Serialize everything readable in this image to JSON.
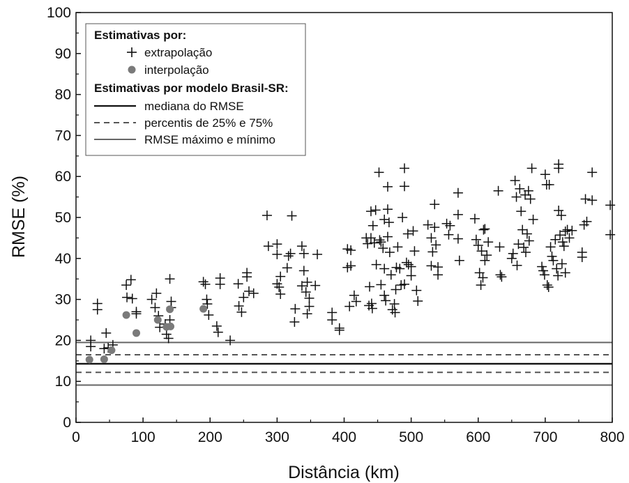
{
  "chart_data": {
    "type": "scatter",
    "xlabel": "Distância (km)",
    "ylabel": "RMSE (%)",
    "xlim": [
      0,
      800
    ],
    "ylim": [
      0,
      100
    ],
    "xticks": [
      0,
      100,
      200,
      300,
      400,
      500,
      600,
      700,
      800
    ],
    "yticks": [
      0,
      10,
      20,
      30,
      40,
      50,
      60,
      70,
      80,
      90,
      100
    ],
    "grid": false,
    "legend": {
      "placement": "top-left",
      "header1": "Estimativas por:",
      "extrap_label": "extrapolação",
      "interp_label": "interpolação",
      "header2": "Estimativas por modelo Brasil-SR:",
      "median_label": "mediana do RMSE",
      "pct_label": "percentis de 25% e 75%",
      "minmax_label": "RMSE máximo e mínimo"
    },
    "reference_lines": {
      "median": 14.3,
      "p25": 12.2,
      "p75": 16.5,
      "min": 9.1,
      "max": 19.5
    },
    "series": [
      {
        "name": "extrapolação",
        "marker": "plus",
        "color": "#111111",
        "points": [
          [
            22,
            20
          ],
          [
            22,
            18.5
          ],
          [
            32,
            29
          ],
          [
            32,
            27.5
          ],
          [
            42,
            18
          ],
          [
            45,
            21.8
          ],
          [
            48,
            18.2
          ],
          [
            55,
            18.9
          ],
          [
            75,
            33.5
          ],
          [
            76,
            30.5
          ],
          [
            82,
            34.8
          ],
          [
            84,
            30.2
          ],
          [
            90,
            27
          ],
          [
            90,
            26.5
          ],
          [
            113,
            30
          ],
          [
            118,
            28
          ],
          [
            120,
            31.5
          ],
          [
            123,
            26
          ],
          [
            125,
            23.2
          ],
          [
            133,
            24
          ],
          [
            135,
            21.5
          ],
          [
            138,
            20.5
          ],
          [
            140,
            35
          ],
          [
            142,
            29.5
          ],
          [
            142,
            28
          ],
          [
            140,
            25
          ],
          [
            190,
            34.3
          ],
          [
            193,
            33.7
          ],
          [
            195,
            30
          ],
          [
            196,
            28.9
          ],
          [
            198,
            26.2
          ],
          [
            210,
            23.5
          ],
          [
            212,
            22
          ],
          [
            215,
            35.2
          ],
          [
            215,
            33.7
          ],
          [
            230,
            20
          ],
          [
            242,
            33.8
          ],
          [
            243,
            28.4
          ],
          [
            247,
            26.9
          ],
          [
            250,
            30.5
          ],
          [
            255,
            35.5
          ],
          [
            255,
            36.5
          ],
          [
            258,
            32
          ],
          [
            265,
            31.5
          ],
          [
            285,
            50.5
          ],
          [
            287,
            43
          ],
          [
            300,
            43.5
          ],
          [
            300,
            41
          ],
          [
            300,
            33.8
          ],
          [
            303,
            33
          ],
          [
            305,
            35.6
          ],
          [
            305,
            31.3
          ],
          [
            315,
            37.7
          ],
          [
            317,
            40.6
          ],
          [
            320,
            41.2
          ],
          [
            322,
            50.4
          ],
          [
            326,
            24.5
          ],
          [
            327,
            27.7
          ],
          [
            337,
            43
          ],
          [
            337,
            33.3
          ],
          [
            340,
            41.2
          ],
          [
            340,
            37
          ],
          [
            343,
            31.8
          ],
          [
            345,
            34.2
          ],
          [
            345,
            26.5
          ],
          [
            348,
            30.3
          ],
          [
            348,
            28.3
          ],
          [
            357,
            33.4
          ],
          [
            360,
            41
          ],
          [
            382,
            26.8
          ],
          [
            382,
            25
          ],
          [
            393,
            23
          ],
          [
            393,
            22.5
          ],
          [
            405,
            42.3
          ],
          [
            405,
            37.8
          ],
          [
            408,
            28.3
          ],
          [
            410,
            42
          ],
          [
            410,
            38.2
          ],
          [
            415,
            31
          ],
          [
            418,
            29.5
          ],
          [
            433,
            45
          ],
          [
            435,
            43.6
          ],
          [
            437,
            28.5
          ],
          [
            438,
            33.1
          ],
          [
            440,
            51.5
          ],
          [
            440,
            45
          ],
          [
            441,
            29
          ],
          [
            442,
            27.8
          ],
          [
            443,
            48
          ],
          [
            445,
            43.8
          ],
          [
            447,
            51.8
          ],
          [
            448,
            38.5
          ],
          [
            452,
            61
          ],
          [
            453,
            44.5
          ],
          [
            455,
            44
          ],
          [
            455,
            33.6
          ],
          [
            458,
            42.5
          ],
          [
            460,
            49.5
          ],
          [
            460,
            37.5
          ],
          [
            460,
            31
          ],
          [
            462,
            29.7
          ],
          [
            465,
            57.5
          ],
          [
            465,
            52
          ],
          [
            465,
            45.3
          ],
          [
            467,
            48.8
          ],
          [
            468,
            41.5
          ],
          [
            470,
            36
          ],
          [
            472,
            27.5
          ],
          [
            475,
            28.9
          ],
          [
            476,
            26.8
          ],
          [
            477,
            32.4
          ],
          [
            478,
            37.8
          ],
          [
            480,
            42.8
          ],
          [
            483,
            37.5
          ],
          [
            485,
            33.5
          ],
          [
            487,
            50
          ],
          [
            490,
            62
          ],
          [
            490,
            57.6
          ],
          [
            490,
            33.7
          ],
          [
            493,
            39
          ],
          [
            495,
            46
          ],
          [
            496,
            38.5
          ],
          [
            500,
            38
          ],
          [
            500,
            35.8
          ],
          [
            503,
            46.7
          ],
          [
            505,
            41.8
          ],
          [
            508,
            32.2
          ],
          [
            510,
            29.6
          ],
          [
            525,
            48.2
          ],
          [
            530,
            45
          ],
          [
            530,
            38.2
          ],
          [
            532,
            41.6
          ],
          [
            535,
            53.2
          ],
          [
            535,
            47.6
          ],
          [
            537,
            43.3
          ],
          [
            540,
            37.9
          ],
          [
            540,
            36
          ],
          [
            553,
            48.5
          ],
          [
            556,
            45.8
          ],
          [
            558,
            48
          ],
          [
            570,
            56
          ],
          [
            570,
            50.7
          ],
          [
            570,
            44.8
          ],
          [
            572,
            39.5
          ],
          [
            595,
            49.7
          ],
          [
            597,
            44.6
          ],
          [
            600,
            43.2
          ],
          [
            602,
            36.5
          ],
          [
            604,
            33.5
          ],
          [
            605,
            41.8
          ],
          [
            607,
            35.3
          ],
          [
            608,
            47
          ],
          [
            610,
            39.5
          ],
          [
            610,
            47.2
          ],
          [
            613,
            40.8
          ],
          [
            615,
            44
          ],
          [
            630,
            56.5
          ],
          [
            632,
            42.8
          ],
          [
            633,
            36
          ],
          [
            635,
            35.5
          ],
          [
            650,
            40
          ],
          [
            652,
            41.2
          ],
          [
            655,
            59
          ],
          [
            657,
            55
          ],
          [
            658,
            38.3
          ],
          [
            660,
            43.5
          ],
          [
            662,
            57
          ],
          [
            664,
            51.5
          ],
          [
            666,
            47
          ],
          [
            668,
            42.7
          ],
          [
            670,
            55.5
          ],
          [
            671,
            41.5
          ],
          [
            673,
            46
          ],
          [
            675,
            56.5
          ],
          [
            676,
            44.3
          ],
          [
            678,
            54.5
          ],
          [
            680,
            62
          ],
          [
            682,
            49.5
          ],
          [
            695,
            38
          ],
          [
            697,
            37
          ],
          [
            699,
            36
          ],
          [
            700,
            60.5
          ],
          [
            702,
            58
          ],
          [
            703,
            33.5
          ],
          [
            705,
            33
          ],
          [
            706,
            58
          ],
          [
            708,
            42.8
          ],
          [
            710,
            40.5
          ],
          [
            712,
            39.5
          ],
          [
            715,
            44.6
          ],
          [
            717,
            37.5
          ],
          [
            719,
            35.8
          ],
          [
            720,
            63
          ],
          [
            720,
            62
          ],
          [
            720,
            51.7
          ],
          [
            722,
            45.7
          ],
          [
            724,
            50.5
          ],
          [
            725,
            38.7
          ],
          [
            726,
            44
          ],
          [
            728,
            43
          ],
          [
            730,
            36.5
          ],
          [
            730,
            46.6
          ],
          [
            733,
            47
          ],
          [
            736,
            45
          ],
          [
            740,
            46.8
          ],
          [
            755,
            40.3
          ],
          [
            755,
            41.5
          ],
          [
            758,
            48.2
          ],
          [
            760,
            54.5
          ],
          [
            762,
            49
          ],
          [
            770,
            54.2
          ],
          [
            770,
            61
          ],
          [
            797,
            53
          ],
          [
            797,
            45.8
          ]
        ]
      },
      {
        "name": "interpolação",
        "marker": "circle",
        "color": "#7a7a7a",
        "points": [
          [
            20,
            15.3
          ],
          [
            42,
            15.4
          ],
          [
            53,
            17.6
          ],
          [
            75,
            26.2
          ],
          [
            90,
            21.8
          ],
          [
            122,
            25
          ],
          [
            135,
            23.3
          ],
          [
            140,
            27.6
          ],
          [
            141,
            23.4
          ],
          [
            190,
            27.7
          ]
        ]
      }
    ]
  }
}
